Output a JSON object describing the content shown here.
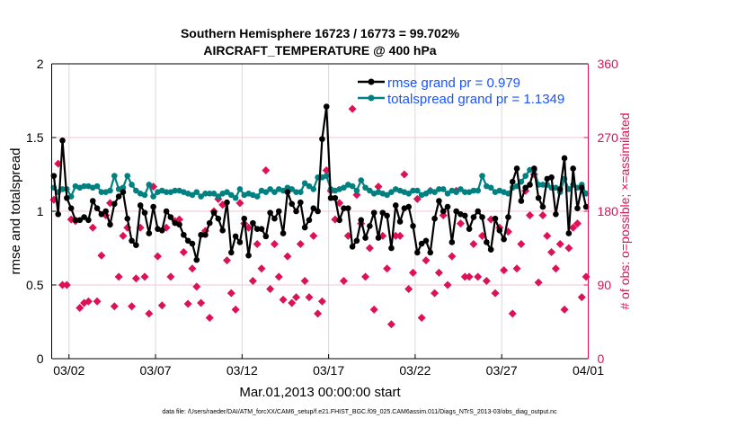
{
  "chart_data": {
    "type": "line",
    "title": [
      "Southern Hemisphere 16723 / 16773 = 99.702%",
      "AIRCRAFT_TEMPERATURE @ 400 hPa"
    ],
    "xlabel": "Mar.01,2013 00:00:00 start",
    "ylabel": "rmse and totalspread",
    "y2label": "# of obs: o=possible; ×=assimilated",
    "footer": "data file: /Users/raeder/DAI/ATM_forcXX/CAM6_setup/f.e21.FHIST_BGC.f09_025.CAM6assim.011/Diags_NTrS_2013-03/obs_diag_output.nc",
    "x_range_days": [
      0,
      31
    ],
    "x_step_days": 0.25,
    "x_ticks": [
      {
        "day": 1,
        "label": "03/02"
      },
      {
        "day": 6,
        "label": "03/07"
      },
      {
        "day": 11,
        "label": "03/12"
      },
      {
        "day": 16,
        "label": "03/17"
      },
      {
        "day": 21,
        "label": "03/22"
      },
      {
        "day": 26,
        "label": "03/27"
      },
      {
        "day": 31,
        "label": "04/01"
      }
    ],
    "ylim": [
      0,
      2
    ],
    "y_ticks": [
      "0",
      "0.5",
      "1",
      "1.5",
      "2"
    ],
    "y2lim": [
      0,
      360
    ],
    "y2_ticks": [
      "0",
      "90",
      "180",
      "270",
      "360"
    ],
    "legend_position": "top-right",
    "colors": {
      "rmse": "#000000",
      "totalspread": "#008080",
      "obs": "#dd1155",
      "legend_text": "#1a53ff",
      "grid_h": "#f5c6d8",
      "grid_v": "#d9d9d9"
    },
    "series": [
      {
        "name": "rmse grand pr = 0.979",
        "key": "rmse",
        "values": [
          1.24,
          0.98,
          1.48,
          1.09,
          1.02,
          0.94,
          0.94,
          0.96,
          0.94,
          1.07,
          1.02,
          0.98,
          1.0,
          0.91,
          1.05,
          1.1,
          1.13,
          0.95,
          0.8,
          0.77,
          1.04,
          0.99,
          0.85,
          1.03,
          0.88,
          0.87,
          1.0,
          0.96,
          0.92,
          0.91,
          0.84,
          0.8,
          0.78,
          0.67,
          0.84,
          0.84,
          0.92,
          0.99,
          0.95,
          0.87,
          1.06,
          0.72,
          0.83,
          0.79,
          0.95,
          0.7,
          0.92,
          0.88,
          0.88,
          0.83,
          0.99,
          0.95,
          1.0,
          0.85,
          1.13,
          1.05,
          1.0,
          1.06,
          0.89,
          0.94,
          1.02,
          1.0,
          1.49,
          1.71,
          1.09,
          1.09,
          0.94,
          1.02,
          1.02,
          0.76,
          0.8,
          0.94,
          0.82,
          0.9,
          0.99,
          0.82,
          0.99,
          0.97,
          0.75,
          1.04,
          0.93,
          1.02,
          1.03,
          0.9,
          0.72,
          0.78,
          0.8,
          0.72,
          0.95,
          1.07,
          1.0,
          1.03,
          0.79,
          1.0,
          0.98,
          0.97,
          0.88,
          0.96,
          1.0,
          0.96,
          0.79,
          0.74,
          0.95,
          0.87,
          0.81,
          0.96,
          1.2,
          1.29,
          1.07,
          1.16,
          1.18,
          1.29,
          1.09,
          1.03,
          1.22,
          1.23,
          0.98,
          1.15,
          1.36,
          0.85,
          1.29,
          1.02,
          1.16,
          1.03
        ]
      },
      {
        "name": "totalspread grand pr = 1.1349",
        "key": "totalspread",
        "values": [
          1.16,
          1.13,
          1.15,
          1.15,
          1.1,
          1.17,
          1.16,
          1.17,
          1.17,
          1.16,
          1.17,
          1.13,
          1.13,
          1.14,
          1.24,
          1.15,
          1.16,
          1.24,
          1.18,
          1.14,
          1.12,
          1.11,
          1.18,
          1.1,
          1.13,
          1.14,
          1.13,
          1.13,
          1.14,
          1.14,
          1.13,
          1.12,
          1.11,
          1.13,
          1.1,
          1.12,
          1.12,
          1.12,
          1.1,
          1.12,
          1.13,
          1.11,
          1.09,
          1.15,
          1.11,
          1.12,
          1.11,
          1.1,
          1.14,
          1.13,
          1.15,
          1.13,
          1.15,
          1.14,
          1.16,
          1.15,
          1.13,
          1.13,
          1.19,
          1.17,
          1.15,
          1.23,
          1.23,
          1.24,
          1.15,
          1.14,
          1.15,
          1.16,
          1.18,
          1.17,
          1.14,
          1.21,
          1.16,
          1.14,
          1.12,
          1.13,
          1.12,
          1.11,
          1.13,
          1.15,
          1.14,
          1.13,
          1.12,
          1.14,
          1.14,
          1.11,
          1.12,
          1.14,
          1.13,
          1.15,
          1.15,
          1.12,
          1.14,
          1.13,
          1.15,
          1.13,
          1.13,
          1.14,
          1.14,
          1.24,
          1.17,
          1.16,
          1.13,
          1.14,
          1.13,
          1.12,
          1.16,
          1.17,
          1.2,
          1.24,
          1.28,
          1.28,
          1.18,
          1.18,
          1.18,
          1.16,
          1.16,
          1.13,
          1.22,
          1.15,
          1.18,
          1.16,
          1.18,
          1.12
        ]
      },
      {
        "name": "# of obs",
        "key": "obs",
        "axis": "right",
        "values": [
          194,
          238,
          90,
          90,
          170,
          168,
          62,
          68,
          70,
          160,
          70,
          126,
          175,
          190,
          64,
          100,
          150,
          160,
          64,
          98,
          160,
          100,
          55,
          210,
          125,
          65,
          160,
          100,
          168,
          170,
          130,
          67,
          110,
          88,
          68,
          156,
          50,
          180,
          195,
          188,
          120,
          80,
          60,
          190,
          165,
          160,
          95,
          140,
          110,
          230,
          85,
          140,
          100,
          72,
          125,
          68,
          75,
          140,
          95,
          75,
          150,
          55,
          70,
          230,
          205,
          170,
          190,
          95,
          150,
          305,
          200,
          165,
          100,
          135,
          60,
          210,
          150,
          110,
          42,
          150,
          150,
          225,
          85,
          105,
          195,
          50,
          120,
          205,
          80,
          105,
          175,
          90,
          125,
          205,
          165,
          100,
          100,
          140,
          100,
          150,
          95,
          170,
          80,
          160,
          108,
          155,
          55,
          110,
          140,
          205,
          175,
          225,
          93,
          175,
          150,
          130,
          110,
          140,
          60,
          135,
          160,
          165,
          75,
          100
        ]
      }
    ]
  }
}
